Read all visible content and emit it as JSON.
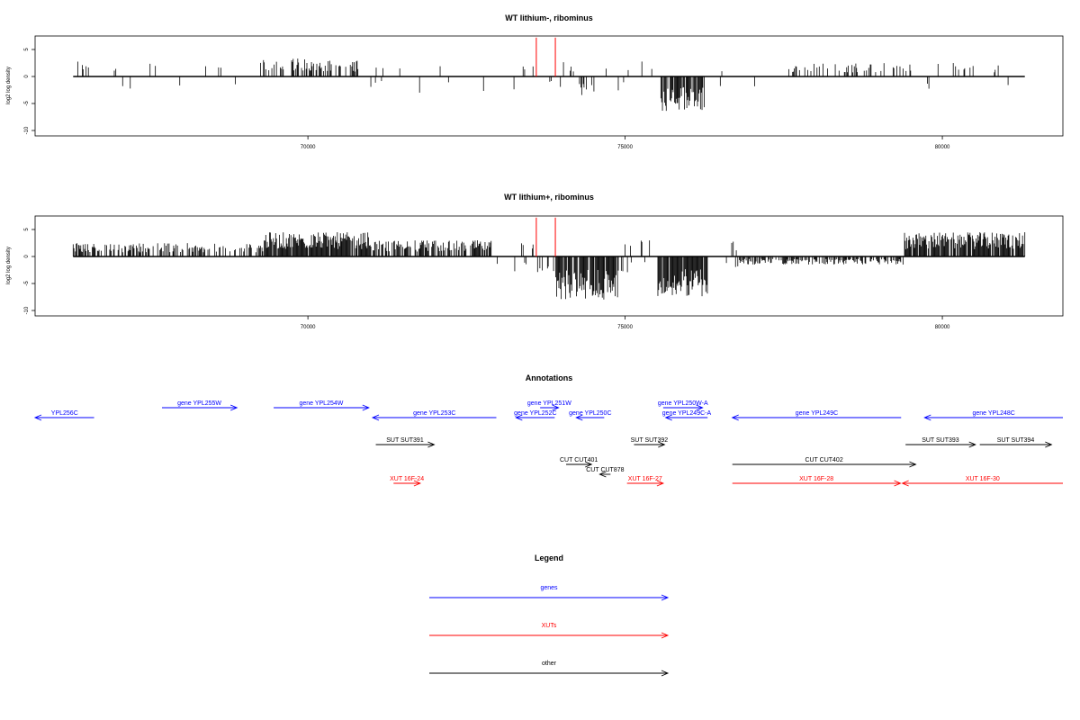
{
  "colors": {
    "genes": "#0000ff",
    "xuts": "#ff0000",
    "other": "#000000",
    "marker": "#ff0000"
  },
  "chart_data": [
    {
      "type": "bar",
      "title": "WT lithium-, ribominus",
      "ylabel": "log2 log density",
      "xlim": [
        65700,
        81900
      ],
      "ylim": [
        -11,
        7.5
      ],
      "xticks": [
        70000,
        75000,
        80000
      ],
      "yticks": [
        5,
        0,
        -5,
        -10
      ],
      "x_range": [
        66300,
        81300
      ],
      "markers": [
        73600,
        73900
      ],
      "signal_regions": [
        {
          "x": [
            66300,
            66600
          ],
          "height": 3,
          "density": 0.3
        },
        {
          "x": [
            69300,
            70000
          ],
          "height": 3.5,
          "density": 0.5
        },
        {
          "x": [
            70000,
            70800
          ],
          "height": 3,
          "density": 0.4
        },
        {
          "x": [
            75550,
            76250
          ],
          "height": -6.5,
          "density": 0.8
        },
        {
          "x": [
            74200,
            74500
          ],
          "height": -4,
          "density": 0.3
        },
        {
          "x": [
            77600,
            79500
          ],
          "height": 2.5,
          "density": 0.2
        },
        {
          "x": [
            80000,
            81000
          ],
          "height": 2.5,
          "density": 0.2
        }
      ]
    },
    {
      "type": "bar",
      "title": "WT lithium+, ribominus",
      "ylabel": "log2 log density",
      "xlim": [
        65700,
        81900
      ],
      "ylim": [
        -11,
        7.5
      ],
      "xticks": [
        70000,
        75000,
        80000
      ],
      "yticks": [
        5,
        0,
        -5,
        -10
      ],
      "x_range": [
        66300,
        81300
      ],
      "markers": [
        73600,
        73900
      ],
      "signal_regions": [
        {
          "x": [
            66300,
            69300
          ],
          "height": 2.5,
          "density": 0.5
        },
        {
          "x": [
            69300,
            71000
          ],
          "height": 4.5,
          "density": 0.9
        },
        {
          "x": [
            71000,
            72900
          ],
          "height": 3,
          "density": 0.7
        },
        {
          "x": [
            73900,
            74900
          ],
          "height": -8,
          "density": 0.9
        },
        {
          "x": [
            75500,
            76300
          ],
          "height": -7.5,
          "density": 0.9
        },
        {
          "x": [
            76800,
            79400
          ],
          "height": -1.5,
          "density": 0.6
        },
        {
          "x": [
            79400,
            81300
          ],
          "height": 4.5,
          "density": 0.9
        }
      ]
    }
  ],
  "annotations": {
    "title": "Annotations",
    "features": [
      {
        "label": "YPL256C",
        "kind": "gene",
        "dir": "left",
        "row": 0,
        "x1": 65700,
        "x2": 66630
      },
      {
        "label": "gene YPL255W",
        "kind": "gene",
        "dir": "right",
        "row": -1,
        "x1": 67700,
        "x2": 68880
      },
      {
        "label": "gene YPL254W",
        "kind": "gene",
        "dir": "right",
        "row": -1,
        "x1": 69460,
        "x2": 70960
      },
      {
        "label": "gene YPL253C",
        "kind": "gene",
        "dir": "left",
        "row": 0,
        "x1": 71020,
        "x2": 72970
      },
      {
        "label": "gene YPL252C",
        "kind": "gene",
        "dir": "left",
        "row": 0,
        "x1": 73280,
        "x2": 73890
      },
      {
        "label": "gene YPL251W",
        "kind": "gene",
        "dir": "right",
        "row": -1,
        "x1": 73660,
        "x2": 73950
      },
      {
        "label": "gene YPL250C",
        "kind": "gene",
        "dir": "left",
        "row": 0,
        "x1": 74230,
        "x2": 74670
      },
      {
        "label": "gene YPL250W-A",
        "kind": "gene",
        "dir": "right",
        "row": -1,
        "x1": 75600,
        "x2": 76220
      },
      {
        "label": "gene YPL249C-A",
        "kind": "gene",
        "dir": "left",
        "row": 0,
        "x1": 75640,
        "x2": 76300
      },
      {
        "label": "gene YPL249C",
        "kind": "gene",
        "dir": "left",
        "row": 0,
        "x1": 76690,
        "x2": 79350
      },
      {
        "label": "gene YPL248C",
        "kind": "gene",
        "dir": "left",
        "row": 0,
        "x1": 79720,
        "x2": 81900
      },
      {
        "label": "SUT SUT391",
        "kind": "other",
        "dir": "right",
        "row": 1,
        "x1": 71070,
        "x2": 71990
      },
      {
        "label": "SUT SUT392",
        "kind": "other",
        "dir": "right",
        "row": 1,
        "x1": 75140,
        "x2": 75620
      },
      {
        "label": "SUT SUT393",
        "kind": "other",
        "dir": "right",
        "row": 1,
        "x1": 79420,
        "x2": 80520
      },
      {
        "label": "SUT SUT394",
        "kind": "other",
        "dir": "right",
        "row": 1,
        "x1": 80590,
        "x2": 81720
      },
      {
        "label": "CUT CUT401",
        "kind": "other",
        "dir": "right",
        "row": 2,
        "x1": 74070,
        "x2": 74470
      },
      {
        "label": "CUT CUT878",
        "kind": "other",
        "dir": "left",
        "row": 3,
        "x1": 74600,
        "x2": 74770
      },
      {
        "label": "CUT CUT402",
        "kind": "other",
        "dir": "right",
        "row": 2,
        "x1": 76690,
        "x2": 79580
      },
      {
        "label": "XUT 16F-24",
        "kind": "xut",
        "dir": "right",
        "row": 4,
        "x1": 71350,
        "x2": 71770
      },
      {
        "label": "XUT 16F-27",
        "kind": "xut",
        "dir": "right",
        "row": 4,
        "x1": 75030,
        "x2": 75600
      },
      {
        "label": "XUT 16F-28",
        "kind": "xut",
        "dir": "right",
        "row": 4,
        "x1": 76690,
        "x2": 79340
      },
      {
        "label": "XUT 16F-30",
        "kind": "xut",
        "dir": "left",
        "row": 4,
        "x1": 79370,
        "x2": 81900
      }
    ]
  },
  "legend": {
    "title": "Legend",
    "items": [
      {
        "label": "genes",
        "kind": "gene"
      },
      {
        "label": "XUTs",
        "kind": "xut"
      },
      {
        "label": "other",
        "kind": "other"
      }
    ]
  }
}
